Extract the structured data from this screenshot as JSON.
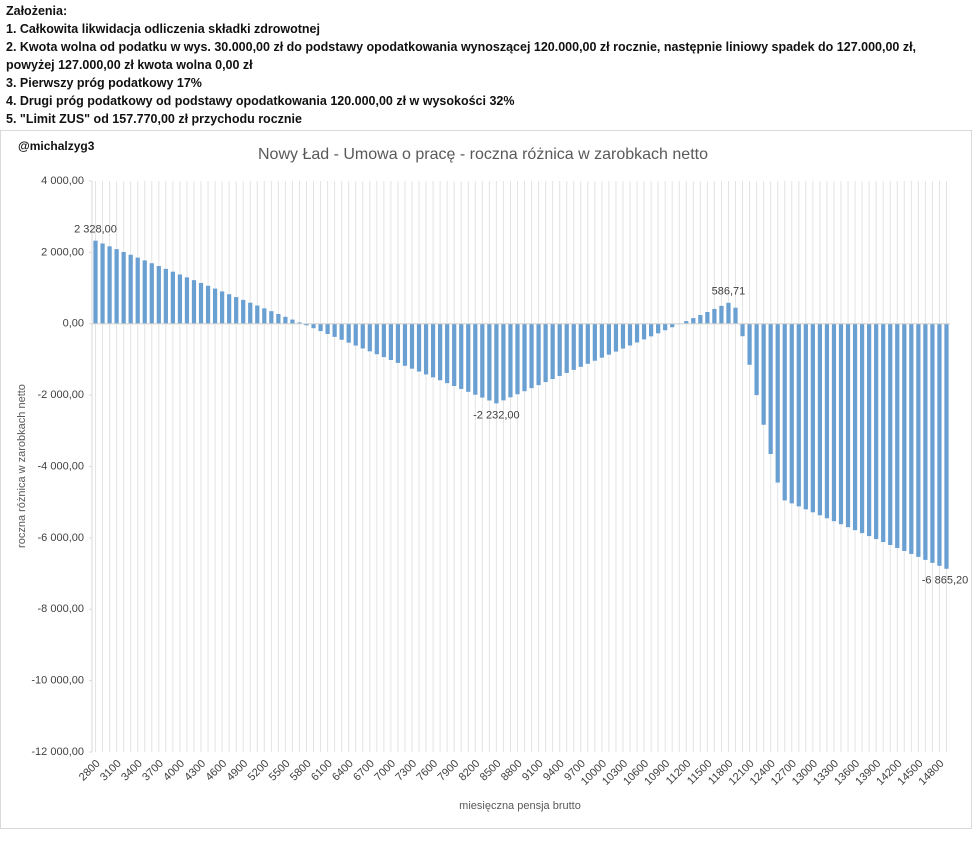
{
  "header": {
    "title": "Założenia:",
    "items": [
      "1. Całkowita likwidacja odliczenia składki zdrowotnej",
      "2. Kwota wolna od podatku w wys. 30.000,00 zł do podstawy opodatkowania wynoszącej 120.000,00 zł rocznie, następnie liniowy spadek do 127.000,00 zł, powyżej 127.000,00 zł kwota wolna 0,00 zł",
      "3. Pierwszy próg podatkowy 17%",
      "4. Drugi próg podatkowy od podstawy opodatkowania 120.000,00 zł w wysokości 32%",
      "5. \"Limit ZUS\" od 157.770,00 zł przychodu rocznie"
    ]
  },
  "chart_data": {
    "type": "bar",
    "title": "Nowy Ład - Umowa o pracę - roczna różnica w zarobkach netto",
    "annotation": "@michalzyg3",
    "x_label": "miesięczna pensja brutto",
    "y_label": "roczna różnica w zarobkach netto",
    "color": "#6a9fd2",
    "grid": true,
    "ylim": [
      -12000,
      4000
    ],
    "yticks": [
      {
        "value": -12000,
        "label": "-12 000,00"
      },
      {
        "value": -10000,
        "label": "-10 000,00"
      },
      {
        "value": -8000,
        "label": "-8 000,00"
      },
      {
        "value": -6000,
        "label": "-6 000,00"
      },
      {
        "value": -4000,
        "label": "-4 000,00"
      },
      {
        "value": -2000,
        "label": "-2 000,00"
      },
      {
        "value": 0,
        "label": "0,00"
      },
      {
        "value": 2000,
        "label": "2 000,00"
      },
      {
        "value": 4000,
        "label": "4 000,00"
      }
    ],
    "categories": [
      "2800",
      null,
      null,
      "3100",
      null,
      null,
      "3400",
      null,
      null,
      "3700",
      null,
      null,
      "4000",
      null,
      null,
      "4300",
      null,
      null,
      "4600",
      null,
      null,
      "4900",
      null,
      null,
      "5200",
      null,
      null,
      "5500",
      null,
      null,
      "5800",
      null,
      null,
      "6100",
      null,
      null,
      "6400",
      null,
      null,
      "6700",
      null,
      null,
      "7000",
      null,
      null,
      "7300",
      null,
      null,
      "7600",
      null,
      null,
      "7900",
      null,
      null,
      "8200",
      null,
      null,
      "8500",
      null,
      null,
      "8800",
      null,
      null,
      "9100",
      null,
      null,
      "9400",
      null,
      null,
      "9700",
      null,
      null,
      "10000",
      null,
      null,
      "10300",
      null,
      null,
      "10600",
      null,
      null,
      "10900",
      null,
      null,
      "11200",
      null,
      null,
      "11500",
      null,
      null,
      "11800",
      null,
      null,
      "12100",
      null,
      null,
      "12400",
      null,
      null,
      "12700",
      null,
      null,
      "13000",
      null,
      null,
      "13300",
      null,
      null,
      "13600",
      null,
      null,
      "13900",
      null,
      null,
      "14200",
      null,
      null,
      "14500",
      null,
      null,
      "14800",
      null
    ],
    "values": [
      2328,
      2249,
      2170,
      2091,
      2012,
      1933,
      1854,
      1775,
      1696,
      1617,
      1538,
      1459,
      1380,
      1301,
      1222,
      1143,
      1064,
      985,
      906,
      827,
      748,
      669,
      590,
      511,
      432,
      353,
      274,
      195,
      116,
      37,
      -44,
      -125,
      -206,
      -287,
      -368,
      -449,
      -530,
      -611,
      -692,
      -773,
      -854,
      -935,
      -1016,
      -1097,
      -1178,
      -1259,
      -1340,
      -1421,
      -1502,
      -1583,
      -1664,
      -1745,
      -1826,
      -1907,
      -1988,
      -2069,
      -2150,
      -2232,
      -2147,
      -2061,
      -1976,
      -1890,
      -1805,
      -1720,
      -1634,
      -1549,
      -1463,
      -1378,
      -1293,
      -1207,
      -1122,
      -1036,
      -951,
      -866,
      -780,
      -695,
      -609,
      -524,
      -439,
      -353,
      -268,
      -182,
      -97,
      -12,
      74,
      159,
      245,
      330,
      415,
      501,
      586.71,
      450,
      -350,
      -1150,
      -2000,
      -2830,
      -3650,
      -4450,
      -4950,
      -5033,
      -5117,
      -5200,
      -5283,
      -5367,
      -5450,
      -5533,
      -5617,
      -5700,
      -5783,
      -5867,
      -5950,
      -6033,
      -6117,
      -6200,
      -6283,
      -6367,
      -6450,
      -6533,
      -6617,
      -6700,
      -6783,
      -6865.2
    ],
    "value_labels": [
      "2 328,00",
      null,
      null,
      null,
      null,
      null,
      null,
      null,
      null,
      null,
      null,
      null,
      null,
      null,
      null,
      null,
      null,
      null,
      null,
      null,
      null,
      null,
      null,
      null,
      null,
      null,
      null,
      null,
      null,
      null,
      null,
      null,
      null,
      null,
      null,
      null,
      null,
      null,
      null,
      null,
      null,
      null,
      null,
      null,
      null,
      null,
      null,
      null,
      null,
      null,
      null,
      null,
      null,
      null,
      null,
      null,
      null,
      "-2 232,00",
      null,
      null,
      null,
      null,
      null,
      null,
      null,
      null,
      null,
      null,
      null,
      null,
      null,
      null,
      null,
      null,
      null,
      null,
      null,
      null,
      null,
      null,
      null,
      null,
      null,
      null,
      null,
      null,
      null,
      null,
      null,
      null,
      "586,71",
      null,
      null,
      null,
      null,
      null,
      null,
      null,
      null,
      null,
      null,
      null,
      null,
      null,
      null,
      null,
      null,
      null,
      null,
      null,
      null,
      null,
      null,
      null,
      null,
      null,
      null,
      null,
      null,
      null,
      null,
      "-6 865,20"
    ]
  }
}
